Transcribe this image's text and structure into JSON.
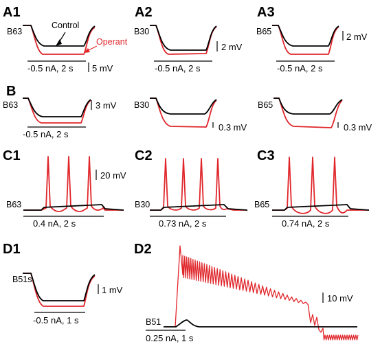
{
  "legend": {
    "control": "Control",
    "operant": "Operant"
  },
  "colors": {
    "control": "#000000",
    "operant": "#e0262b"
  },
  "panels": {
    "A1": {
      "label": "A1",
      "cell": "B63",
      "stim": "-0.5 nA, 2 s",
      "scale": "5 mV"
    },
    "A2": {
      "label": "A2",
      "cell": "B30",
      "stim": "-0.5 nA, 2 s",
      "scale": "2 mV"
    },
    "A3": {
      "label": "A3",
      "cell": "B65",
      "stim": "-0.5 nA, 2 s",
      "scale": "2 mV"
    },
    "B1": {
      "label": "B",
      "cell": "B63",
      "stim": "-0.5 nA, 2 s",
      "scale": "3 mV"
    },
    "B2": {
      "cell": "B30",
      "scale": "0.3 mV"
    },
    "B3": {
      "cell": "B65",
      "scale": "0.3 mV"
    },
    "C1": {
      "label": "C1",
      "cell": "B63",
      "stim": "0.4 nA, 2 s",
      "scale": "20 mV"
    },
    "C2": {
      "label": "C2",
      "cell": "B30",
      "stim": "0.73 nA, 2 s"
    },
    "C3": {
      "label": "C3",
      "cell": "B65",
      "stim": "0.74 nA, 2 s"
    },
    "D1": {
      "label": "D1",
      "cell": "B51s",
      "stim": "-0.5 nA, 1 s",
      "scale": "1 mV"
    },
    "D2": {
      "label": "D2",
      "cell": "B51",
      "stim": "0.25 nA, 1 s",
      "scale": "10  mV"
    }
  }
}
